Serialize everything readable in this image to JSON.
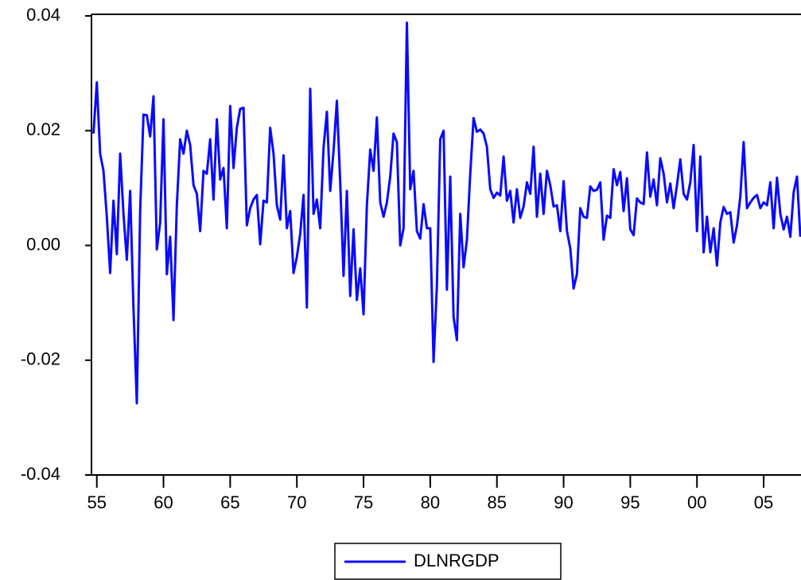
{
  "chart_data": {
    "type": "line",
    "x": [
      1954.75,
      1955,
      1955.25,
      1955.5,
      1955.75,
      1956,
      1956.25,
      1956.5,
      1956.75,
      1957,
      1957.25,
      1957.5,
      1957.75,
      1958,
      1958.25,
      1958.5,
      1958.75,
      1959,
      1959.25,
      1959.5,
      1959.75,
      1960,
      1960.25,
      1960.5,
      1960.75,
      1961,
      1961.25,
      1961.5,
      1961.75,
      1962,
      1962.25,
      1962.5,
      1962.75,
      1963,
      1963.25,
      1963.5,
      1963.75,
      1964,
      1964.25,
      1964.5,
      1964.75,
      1965,
      1965.25,
      1965.5,
      1965.75,
      1966,
      1966.25,
      1966.5,
      1966.75,
      1967,
      1967.25,
      1967.5,
      1967.75,
      1968,
      1968.25,
      1968.5,
      1968.75,
      1969,
      1969.25,
      1969.5,
      1969.75,
      1970,
      1970.25,
      1970.5,
      1970.75,
      1971,
      1971.25,
      1971.5,
      1971.75,
      1972,
      1972.25,
      1972.5,
      1972.75,
      1973,
      1973.25,
      1973.5,
      1973.75,
      1974,
      1974.25,
      1974.5,
      1974.75,
      1975,
      1975.25,
      1975.5,
      1975.75,
      1976,
      1976.25,
      1976.5,
      1976.75,
      1977,
      1977.25,
      1977.5,
      1977.75,
      1978,
      1978.25,
      1978.5,
      1978.75,
      1979,
      1979.25,
      1979.5,
      1979.75,
      1980,
      1980.25,
      1980.5,
      1980.75,
      1981,
      1981.25,
      1981.5,
      1981.75,
      1982,
      1982.25,
      1982.5,
      1982.75,
      1983,
      1983.25,
      1983.5,
      1983.75,
      1984,
      1984.25,
      1984.5,
      1984.75,
      1985,
      1985.25,
      1985.5,
      1985.75,
      1986,
      1986.25,
      1986.5,
      1986.75,
      1987,
      1987.25,
      1987.5,
      1987.75,
      1988,
      1988.25,
      1988.5,
      1988.75,
      1989,
      1989.25,
      1989.5,
      1989.75,
      1990,
      1990.25,
      1990.5,
      1990.75,
      1991,
      1991.25,
      1991.5,
      1991.75,
      1992,
      1992.25,
      1992.5,
      1992.75,
      1993,
      1993.25,
      1993.5,
      1993.75,
      1994,
      1994.25,
      1994.5,
      1994.75,
      1995,
      1995.25,
      1995.5,
      1995.75,
      1996,
      1996.25,
      1996.5,
      1996.75,
      1997,
      1997.25,
      1997.5,
      1997.75,
      1998,
      1998.25,
      1998.5,
      1998.75,
      1999,
      1999.25,
      1999.5,
      1999.75,
      2000,
      2000.25,
      2000.5,
      2000.75,
      2001,
      2001.25,
      2001.5,
      2001.75,
      2002,
      2002.25,
      2002.5,
      2002.75,
      2003,
      2003.25,
      2003.5,
      2003.75,
      2004,
      2004.25,
      2004.5,
      2004.75,
      2005,
      2005.25,
      2005.5,
      2005.75,
      2006,
      2006.25,
      2006.5,
      2006.75,
      2007,
      2007.25,
      2007.5,
      2007.75
    ],
    "series": [
      {
        "name": "DLNRGDP",
        "color": "#0a0aff",
        "values": [
          0.0195,
          0.0284,
          0.016,
          0.013,
          0.005,
          -0.0048,
          0.0078,
          -0.0015,
          0.016,
          0.0055,
          -0.0025,
          0.0095,
          -0.011,
          -0.0275,
          0.006,
          0.0228,
          0.0227,
          0.019,
          0.026,
          -0.0007,
          0.004,
          0.022,
          -0.005,
          0.0015,
          -0.013,
          0.007,
          0.0185,
          0.016,
          0.02,
          0.0175,
          0.0105,
          0.009,
          0.0025,
          0.013,
          0.0125,
          0.0185,
          0.008,
          0.022,
          0.0115,
          0.0135,
          0.003,
          0.0243,
          0.0135,
          0.0205,
          0.0238,
          0.024,
          0.0035,
          0.0065,
          0.008,
          0.0088,
          0.0002,
          0.0078,
          0.0075,
          0.0205,
          0.016,
          0.007,
          0.0045,
          0.0157,
          0.003,
          0.006,
          -0.0048,
          -0.002,
          0.002,
          0.0088,
          -0.0108,
          0.0273,
          0.0055,
          0.008,
          0.003,
          0.017,
          0.0233,
          0.0095,
          0.0165,
          0.0252,
          0.011,
          -0.0053,
          0.0095,
          -0.0088,
          0.0028,
          -0.0095,
          -0.004,
          -0.012,
          0.007,
          0.0167,
          0.013,
          0.0223,
          0.0075,
          0.005,
          0.0075,
          0.012,
          0.0195,
          0.018,
          0.0,
          0.003,
          0.0388,
          0.0098,
          0.013,
          0.0025,
          0.0012,
          0.0072,
          0.003,
          0.003,
          -0.0203,
          -0.007,
          0.0185,
          0.02,
          -0.0077,
          0.012,
          -0.0125,
          -0.0165,
          0.0055,
          -0.0038,
          0.001,
          0.0125,
          0.0222,
          0.0198,
          0.0202,
          0.0195,
          0.0172,
          0.0098,
          0.0083,
          0.0092,
          0.0087,
          0.0155,
          0.0078,
          0.0095,
          0.004,
          0.0098,
          0.0048,
          0.0068,
          0.011,
          0.009,
          0.0172,
          0.005,
          0.0125,
          0.0055,
          0.013,
          0.0105,
          0.0068,
          0.007,
          0.0025,
          0.0112,
          0.0025,
          -0.0005,
          -0.0075,
          -0.005,
          0.0065,
          0.005,
          0.0048,
          0.0103,
          0.0095,
          0.0097,
          0.011,
          0.001,
          0.0052,
          0.0048,
          0.0133,
          0.0105,
          0.0128,
          0.006,
          0.0117,
          0.0028,
          0.0018,
          0.0082,
          0.0075,
          0.0072,
          0.0162,
          0.0085,
          0.0115,
          0.007,
          0.0152,
          0.0125,
          0.0075,
          0.0108,
          0.0065,
          0.0105,
          0.015,
          0.009,
          0.008,
          0.011,
          0.0175,
          0.0025,
          0.0155,
          -0.0012,
          0.005,
          -0.0012,
          0.003,
          -0.0035,
          0.004,
          0.0067,
          0.0055,
          0.0058,
          0.0005,
          0.0035,
          0.0085,
          0.018,
          0.0065,
          0.0075,
          0.0083,
          0.0088,
          0.0065,
          0.0075,
          0.007,
          0.011,
          0.003,
          0.0118,
          0.0055,
          0.0028,
          0.005,
          0.0015,
          0.0093,
          0.012,
          0.0015
        ]
      }
    ],
    "xlim": [
      1954.6,
      2007.8
    ],
    "xticks": [
      {
        "value": 1955,
        "label": "55"
      },
      {
        "value": 1960,
        "label": "60"
      },
      {
        "value": 1965,
        "label": "65"
      },
      {
        "value": 1970,
        "label": "70"
      },
      {
        "value": 1975,
        "label": "75"
      },
      {
        "value": 1980,
        "label": "80"
      },
      {
        "value": 1985,
        "label": "85"
      },
      {
        "value": 1990,
        "label": "90"
      },
      {
        "value": 1995,
        "label": "95"
      },
      {
        "value": 2000,
        "label": "00"
      },
      {
        "value": 2005,
        "label": "05"
      }
    ],
    "ylim": [
      -0.04,
      0.04
    ],
    "yticks": [
      -0.04,
      -0.02,
      {
        "value": 0,
        "label": "0.00"
      },
      0.02,
      0.04
    ],
    "legend": "bottom"
  }
}
